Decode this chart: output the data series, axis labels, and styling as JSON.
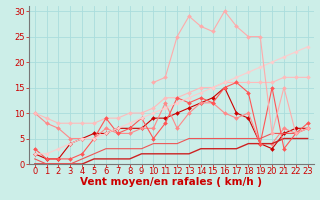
{
  "background_color": "#cceee8",
  "grid_color": "#aadddd",
  "xlabel": "Vent moyen/en rafales ( km/h )",
  "xlabel_color": "#cc0000",
  "xlabel_fontsize": 7.5,
  "tick_color": "#cc0000",
  "tick_fontsize": 6,
  "xlim": [
    -0.5,
    23.5
  ],
  "ylim": [
    0,
    31
  ],
  "yticks": [
    0,
    5,
    10,
    15,
    20,
    25,
    30
  ],
  "xticks": [
    0,
    1,
    2,
    3,
    4,
    5,
    6,
    7,
    8,
    9,
    10,
    11,
    12,
    13,
    14,
    15,
    16,
    17,
    18,
    19,
    20,
    21,
    22,
    23
  ],
  "lines": [
    {
      "x": [
        0,
        1,
        2,
        3,
        4,
        5,
        6,
        7,
        8,
        9,
        10,
        11,
        12,
        13,
        14,
        15,
        16,
        17,
        18,
        19,
        20,
        21,
        22,
        23
      ],
      "y": [
        2,
        1,
        1,
        4,
        5,
        6,
        6,
        7,
        7,
        7,
        9,
        9,
        10,
        11,
        12,
        13,
        15,
        10,
        9,
        4,
        3,
        6,
        7,
        7
      ],
      "color": "#cc0000",
      "lw": 0.8,
      "marker": "D",
      "ms": 2.0
    },
    {
      "x": [
        0,
        1,
        2,
        3,
        4,
        5,
        6,
        7,
        8,
        9,
        10,
        11,
        12,
        13,
        14,
        15,
        16,
        17,
        18,
        19,
        20,
        21,
        22,
        23
      ],
      "y": [
        10,
        8,
        7,
        5,
        5,
        5,
        7,
        6,
        6,
        7,
        7,
        12,
        7,
        10,
        12,
        12,
        10,
        9,
        10,
        4,
        4,
        7,
        6,
        7
      ],
      "color": "#ff8888",
      "lw": 0.8,
      "marker": "D",
      "ms": 2.0
    },
    {
      "x": [
        0,
        1,
        2,
        3,
        4,
        5,
        6,
        7,
        8,
        9,
        10,
        11,
        12,
        13,
        14,
        15,
        16,
        17,
        18,
        19,
        20,
        21,
        22,
        23
      ],
      "y": [
        0,
        0,
        0,
        0,
        0,
        1,
        1,
        1,
        1,
        2,
        2,
        2,
        2,
        2,
        3,
        3,
        3,
        3,
        4,
        4,
        4,
        5,
        5,
        5
      ],
      "color": "#cc2222",
      "lw": 1.0,
      "marker": null,
      "ms": 0
    },
    {
      "x": [
        0,
        1,
        2,
        3,
        4,
        5,
        6,
        7,
        8,
        9,
        10,
        11,
        12,
        13,
        14,
        15,
        16,
        17,
        18,
        19,
        20,
        21,
        22,
        23
      ],
      "y": [
        10,
        9,
        8,
        8,
        8,
        8,
        9,
        9,
        10,
        10,
        11,
        13,
        13,
        14,
        15,
        15,
        16,
        16,
        16,
        16,
        16,
        17,
        17,
        17
      ],
      "color": "#ffbbbb",
      "lw": 0.8,
      "marker": "D",
      "ms": 2.0
    },
    {
      "x": [
        0,
        1,
        2,
        3,
        4,
        5,
        6,
        7,
        8,
        9,
        10,
        11,
        12,
        13,
        14,
        15,
        16,
        17,
        18,
        19,
        20,
        21,
        22,
        23
      ],
      "y": [
        1,
        0,
        0,
        0,
        1,
        2,
        3,
        3,
        3,
        3,
        4,
        4,
        4,
        5,
        5,
        5,
        5,
        5,
        5,
        5,
        6,
        6,
        6,
        7
      ],
      "color": "#ee5555",
      "lw": 0.8,
      "marker": null,
      "ms": 0
    },
    {
      "x": [
        0,
        1,
        2,
        3,
        4,
        5,
        6,
        7,
        8,
        9,
        10,
        11,
        12,
        13,
        14,
        15,
        16,
        17,
        18,
        19,
        20,
        21,
        22,
        23
      ],
      "y": [
        3,
        1,
        1,
        1,
        2,
        5,
        9,
        6,
        7,
        9,
        5,
        8,
        13,
        12,
        13,
        12,
        15,
        16,
        14,
        4,
        15,
        3,
        6,
        8
      ],
      "color": "#ff5555",
      "lw": 0.8,
      "marker": "D",
      "ms": 2.0
    },
    {
      "x": [
        0,
        1,
        2,
        3,
        4,
        5,
        6,
        7,
        8,
        9,
        10,
        11,
        12,
        13,
        14,
        15,
        16,
        17,
        18,
        19,
        20,
        21,
        22,
        23
      ],
      "y": [
        2,
        2,
        3,
        4,
        5,
        5,
        6,
        7,
        8,
        9,
        10,
        11,
        12,
        13,
        14,
        15,
        16,
        17,
        18,
        19,
        20,
        21,
        22,
        23
      ],
      "color": "#ffcccc",
      "lw": 0.8,
      "marker": "D",
      "ms": 1.8
    },
    {
      "x": [
        10,
        11,
        12,
        13,
        14,
        15,
        16,
        17,
        18,
        19,
        20,
        21,
        22,
        23
      ],
      "y": [
        16,
        17,
        25,
        29,
        27,
        26,
        30,
        27,
        25,
        25,
        6,
        15,
        6,
        7
      ],
      "color": "#ffaaaa",
      "lw": 0.8,
      "marker": "D",
      "ms": 2.0
    }
  ]
}
